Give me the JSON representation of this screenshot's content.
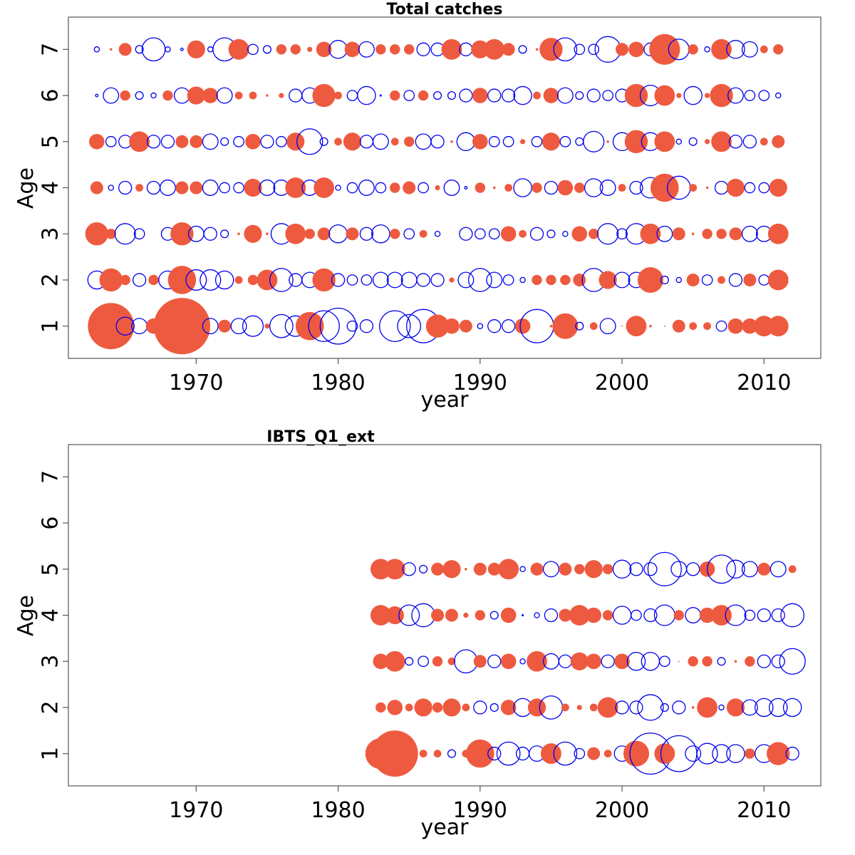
{
  "colors": {
    "positive": "#ee5a3f",
    "negative": "#0000ee",
    "axis": "#555555"
  },
  "chart_data": [
    {
      "type": "scatter",
      "subtype": "bubble-residuals",
      "title": "Total catches",
      "xlabel": "year",
      "ylabel": "Age",
      "xlim": [
        1961,
        2014
      ],
      "ylim": [
        0.3,
        7.7
      ],
      "xticks": [
        1970,
        1980,
        1990,
        2000,
        2010
      ],
      "yticks": [
        1,
        2,
        3,
        4,
        5,
        6,
        7
      ],
      "legend": "none",
      "grid": false,
      "years": [
        1963,
        1964,
        1965,
        1966,
        1967,
        1968,
        1969,
        1970,
        1971,
        1972,
        1973,
        1974,
        1975,
        1976,
        1977,
        1978,
        1979,
        1980,
        1981,
        1982,
        1983,
        1984,
        1985,
        1986,
        1987,
        1988,
        1989,
        1990,
        1991,
        1992,
        1993,
        1994,
        1995,
        1996,
        1997,
        1998,
        1999,
        2000,
        2001,
        2002,
        2003,
        2004,
        2005,
        2006,
        2007,
        2008,
        2009,
        2010,
        2011
      ],
      "ages": [
        1,
        2,
        3,
        4,
        5,
        6,
        7
      ],
      "residuals": {
        "1": [
          0.6,
          1.8,
          -0.7,
          -0.6,
          0.6,
          0,
          2.2,
          0.3,
          -0.6,
          0.5,
          -0.6,
          -0.8,
          0.2,
          -0.9,
          -0.8,
          1.1,
          -1.2,
          -1.4,
          -0.4,
          -0.5,
          0,
          -1.2,
          -0.9,
          -1.3,
          0.9,
          0.6,
          0.5,
          -0.2,
          -0.5,
          -0.5,
          0.6,
          -1.3,
          0.1,
          1.0,
          -0.3,
          0.3,
          -0.6,
          0.05,
          0.8,
          0.1,
          0.05,
          0.5,
          0.3,
          0.3,
          -0.4,
          0.6,
          0.6,
          0.8,
          0.8
        ],
        "2": [
          -0.7,
          0.9,
          0.4,
          -0.5,
          0.4,
          -0.7,
          1.1,
          -0.8,
          -0.8,
          -0.7,
          0.3,
          0.4,
          0.8,
          -0.9,
          -0.5,
          -0.6,
          0.9,
          -0.5,
          -0.4,
          -0.4,
          -0.6,
          -0.6,
          -0.6,
          -0.5,
          -0.5,
          0.2,
          -0.6,
          -0.9,
          -0.6,
          -0.4,
          -0.2,
          0.4,
          0.4,
          0.4,
          0.5,
          -0.9,
          0.7,
          -0.6,
          -0.6,
          1.0,
          -0.3,
          -0.2,
          0.5,
          -0.4,
          0.3,
          -0.5,
          0.5,
          -0.4,
          0.8
        ],
        "3": [
          0.9,
          0.4,
          -0.8,
          -0.4,
          0,
          -0.5,
          0.9,
          -0.6,
          -0.5,
          -0.3,
          0.1,
          0.7,
          0.1,
          -0.8,
          0.8,
          0.4,
          0.5,
          -0.7,
          0.5,
          -0.5,
          -0.7,
          0.4,
          -0.4,
          0.3,
          -0.2,
          0,
          -0.5,
          -0.4,
          -0.4,
          0.6,
          0.3,
          -0.5,
          -0.3,
          -0.2,
          0.6,
          0.4,
          -0.8,
          -0.4,
          -0.8,
          0.8,
          -0.6,
          0.5,
          0.1,
          0.4,
          0.4,
          0.5,
          -0.6,
          -0.6,
          0.8
        ],
        "4": [
          0.5,
          -0.2,
          -0.5,
          0.3,
          -0.5,
          -0.6,
          0.5,
          0.5,
          -0.6,
          -0.4,
          -0.4,
          0.7,
          -0.6,
          -0.6,
          0.8,
          -0.6,
          0.8,
          -0.2,
          -0.4,
          -0.6,
          -0.4,
          0.4,
          0.5,
          -0.4,
          0.2,
          -0.6,
          -0.1,
          0.4,
          0.1,
          0.3,
          -0.7,
          0.4,
          -0.5,
          0.6,
          0.4,
          -0.7,
          -0.6,
          0.3,
          -0.5,
          -0.8,
          1.1,
          -0.9,
          0.3,
          0.1,
          -0.5,
          0.7,
          -0.4,
          -0.4,
          0.7
        ],
        "5": [
          0.6,
          -0.4,
          -0.5,
          0.8,
          -0.5,
          -0.5,
          0.5,
          0.5,
          -0.6,
          -0.3,
          -0.4,
          0.6,
          -0.5,
          -0.4,
          0.7,
          -1.0,
          -0.3,
          0.3,
          0.7,
          -0.5,
          -0.6,
          0.3,
          0.4,
          -0.6,
          -0.5,
          0.1,
          -0.7,
          0.6,
          -0.4,
          -0.4,
          0.2,
          -0.4,
          0.7,
          -0.4,
          -0.3,
          -0.8,
          0.1,
          -0.7,
          0.9,
          -0.7,
          0.8,
          -0.2,
          -0.3,
          0.2,
          0.8,
          -0.5,
          -0.5,
          0.3,
          0.5
        ],
        "6": [
          -0.1,
          -0.6,
          0.4,
          -0.3,
          -0.2,
          0.4,
          -0.6,
          0.7,
          0.6,
          -0.6,
          0.3,
          0.3,
          0.1,
          0.2,
          -0.5,
          -0.6,
          0.9,
          0.3,
          -0.4,
          -0.7,
          -0.05,
          0.4,
          -0.4,
          0.4,
          -0.3,
          -0.3,
          -0.5,
          0.6,
          -0.5,
          -0.5,
          -0.7,
          0.3,
          0.6,
          -0.6,
          -0.3,
          -0.5,
          -0.4,
          -0.5,
          0.9,
          -0.8,
          0.8,
          0.2,
          -0.7,
          0.2,
          0.9,
          -0.6,
          -0.4,
          -0.4,
          -0.2
        ],
        "7": [
          -0.2,
          0.1,
          0.5,
          -0.3,
          -0.9,
          -0.2,
          -0.1,
          0.7,
          -0.2,
          -0.9,
          0.8,
          -0.4,
          -0.3,
          0.4,
          0.4,
          0.2,
          0.6,
          -0.7,
          0.6,
          -0.6,
          0.4,
          0.4,
          0.4,
          -0.5,
          -0.5,
          0.8,
          -0.5,
          0.7,
          0.8,
          0.5,
          -0.3,
          0.1,
          0.9,
          -0.9,
          -0.4,
          -0.4,
          -1.0,
          0.5,
          0.6,
          -0.5,
          1.2,
          -0.8,
          0.4,
          -0.2,
          0.8,
          -0.7,
          -0.6,
          0.3,
          0.4
        ]
      }
    },
    {
      "type": "scatter",
      "subtype": "bubble-residuals",
      "title": "IBTS_Q1_ext",
      "xlabel": "year",
      "ylabel": "Age",
      "xlim": [
        1961,
        2014
      ],
      "ylim": [
        0.3,
        7.7
      ],
      "xticks": [
        1970,
        1980,
        1990,
        2000,
        2010
      ],
      "yticks": [
        1,
        2,
        3,
        4,
        5,
        6,
        7
      ],
      "legend": "none",
      "grid": false,
      "years": [
        1983,
        1984,
        1985,
        1986,
        1987,
        1988,
        1989,
        1990,
        1991,
        1992,
        1993,
        1994,
        1995,
        1996,
        1997,
        1998,
        1999,
        2000,
        2001,
        2002,
        2003,
        2004,
        2005,
        2006,
        2007,
        2008,
        2009,
        2010,
        2011,
        2012
      ],
      "ages": [
        1,
        2,
        3,
        4,
        5
      ],
      "residuals": {
        "1": [
          1.2,
          1.8,
          0.6,
          0.3,
          0.3,
          -0.3,
          0.3,
          1.1,
          -0.5,
          -0.9,
          -0.5,
          -0.6,
          0.8,
          -0.9,
          -0.4,
          0.5,
          0.3,
          -0.6,
          1.0,
          -1.6,
          0.8,
          -1.4,
          -0.6,
          -0.8,
          -0.7,
          -0.7,
          0.4,
          -0.7,
          0.9,
          -0.5
        ],
        "2": [
          0.4,
          0.6,
          0.3,
          0.7,
          0.4,
          0.7,
          0.3,
          -0.5,
          -0.3,
          0.6,
          -0.7,
          0.7,
          -0.9,
          0.3,
          0.2,
          0.3,
          0.8,
          -0.5,
          -0.5,
          -1.0,
          -0.3,
          -0.5,
          0.1,
          0.8,
          -0.2,
          0.7,
          -0.6,
          -0.7,
          -0.7,
          -0.7
        ],
        "3": [
          0.6,
          0.8,
          -0.3,
          -0.4,
          0.4,
          0.3,
          -0.9,
          0.5,
          -0.5,
          0.6,
          -0.2,
          0.8,
          -0.6,
          -0.5,
          0.7,
          0.6,
          -0.5,
          0.6,
          -0.7,
          -0.7,
          -0.4,
          0.05,
          0.4,
          0.4,
          -0.3,
          0.1,
          0.4,
          -0.5,
          -0.5,
          -1.0
        ],
        "4": [
          0.8,
          0.7,
          -0.8,
          -0.9,
          0.5,
          0.5,
          0.2,
          0.4,
          -0.3,
          0.6,
          -0.05,
          -0.2,
          -0.5,
          0.5,
          0.8,
          0.6,
          0.4,
          -0.7,
          -0.4,
          -0.5,
          -0.8,
          0.4,
          -0.6,
          0.6,
          0.8,
          -0.8,
          -0.4,
          -0.5,
          -0.5,
          -0.9
        ],
        "5": [
          0.8,
          0.8,
          -0.5,
          -0.3,
          0.5,
          0.7,
          0.1,
          0.5,
          0.5,
          0.8,
          -0.2,
          0.5,
          -0.6,
          0.5,
          0.4,
          0.7,
          0.4,
          -0.7,
          -0.5,
          -0.5,
          -1.3,
          -0.6,
          -0.5,
          0.6,
          -1.1,
          -0.7,
          -0.6,
          0.5,
          -0.6,
          0.3
        ]
      }
    }
  ]
}
